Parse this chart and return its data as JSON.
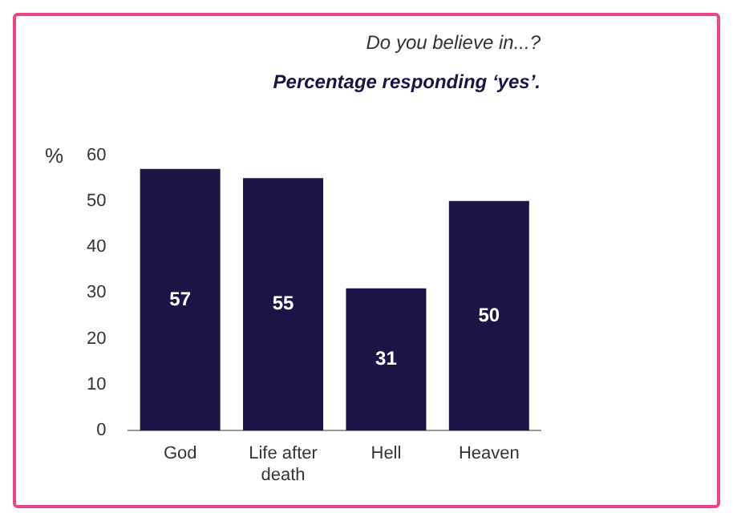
{
  "chart_data": {
    "type": "bar",
    "title": "Do you believe in...?",
    "subtitle": "Percentage responding ‘yes’.",
    "ylabel": "%",
    "categories": [
      "God",
      "Life after death",
      "Hell",
      "Heaven"
    ],
    "values": [
      57,
      55,
      31,
      50
    ],
    "color": "#1b1545",
    "ylim": [
      0,
      60
    ],
    "yticks": [
      0,
      10,
      20,
      30,
      40,
      50,
      60
    ],
    "grid": false,
    "legend": false,
    "data_labels": true
  }
}
